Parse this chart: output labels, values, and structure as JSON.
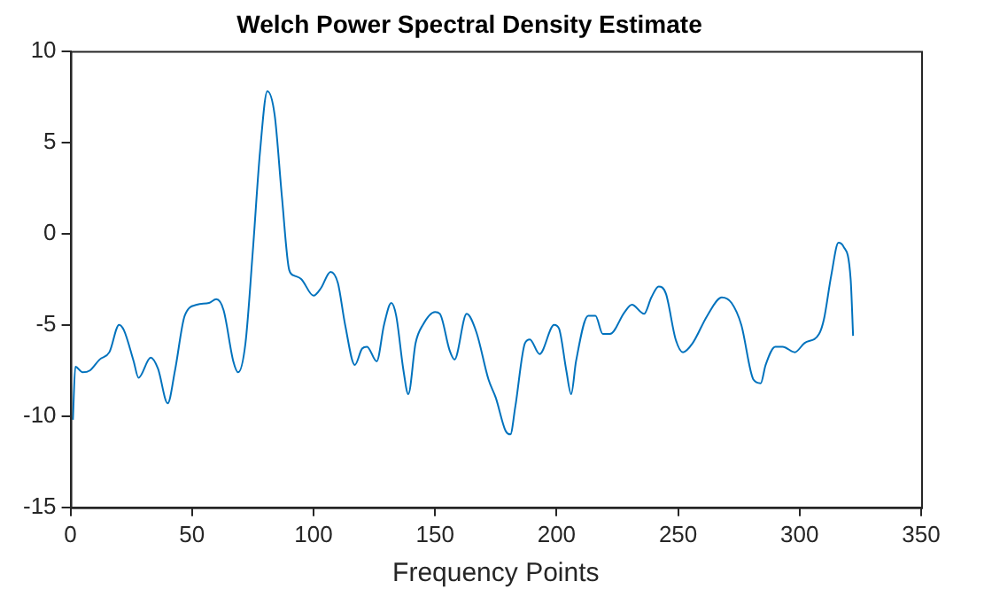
{
  "chart_data": {
    "type": "line",
    "title": "Welch Power Spectral Density Estimate",
    "xlabel": "Frequency Points",
    "xlim": [
      0,
      350
    ],
    "xticks": [
      0,
      50,
      100,
      150,
      200,
      250,
      300,
      350
    ],
    "ylim": [
      -15,
      10
    ],
    "yticks": [
      -15,
      -10,
      -5,
      0,
      5,
      10
    ],
    "grid": false,
    "legend": false,
    "marker": "none",
    "line_style": "solid",
    "series": [
      {
        "color": "#0072bd",
        "x": [
          1,
          2,
          5,
          8,
          12,
          16,
          20,
          22,
          26,
          28,
          33,
          36,
          40,
          43,
          47,
          52,
          57,
          60,
          63,
          67,
          69,
          72,
          75,
          78,
          81,
          84,
          87,
          90,
          92,
          95,
          100,
          103,
          107,
          110,
          113,
          117,
          120,
          122,
          126,
          129,
          132,
          134,
          137,
          139,
          142,
          145,
          150,
          152,
          156,
          158,
          163,
          167,
          172,
          175,
          179,
          181,
          183,
          187,
          189,
          193,
          199,
          201,
          204,
          206,
          208,
          213,
          216,
          219,
          222,
          228,
          231,
          236,
          239,
          242,
          245,
          249,
          252,
          256,
          262,
          268,
          272,
          276,
          281,
          284,
          286,
          290,
          293,
          298,
          302,
          308,
          310,
          313,
          316,
          318,
          321,
          322
        ],
        "values": [
          -10.2,
          -7.3,
          -7.6,
          -7.5,
          -6.9,
          -6.5,
          -5.0,
          -5.3,
          -7.0,
          -7.9,
          -6.8,
          -7.4,
          -9.3,
          -7.5,
          -4.5,
          -3.9,
          -3.8,
          -3.6,
          -4.2,
          -7.0,
          -7.6,
          -6.0,
          -1.0,
          4.5,
          7.8,
          6.5,
          2.0,
          -2.0,
          -2.3,
          -2.5,
          -3.4,
          -3.0,
          -2.1,
          -2.7,
          -5.0,
          -7.2,
          -6.3,
          -6.2,
          -7.0,
          -5.0,
          -3.8,
          -4.5,
          -7.5,
          -8.8,
          -6.0,
          -5.0,
          -4.3,
          -4.4,
          -6.4,
          -6.9,
          -4.4,
          -5.4,
          -8.0,
          -9.0,
          -10.8,
          -11.0,
          -9.5,
          -6.0,
          -5.8,
          -6.6,
          -5.0,
          -5.2,
          -7.5,
          -8.8,
          -7.0,
          -4.5,
          -4.5,
          -5.5,
          -5.5,
          -4.3,
          -3.9,
          -4.4,
          -3.5,
          -2.9,
          -3.3,
          -5.8,
          -6.5,
          -6.0,
          -4.5,
          -3.5,
          -3.8,
          -5.0,
          -8.0,
          -8.2,
          -7.2,
          -6.2,
          -6.2,
          -6.5,
          -6.0,
          -5.5,
          -4.7,
          -2.3,
          -0.5,
          -0.7,
          -2.5,
          -5.6
        ]
      }
    ]
  }
}
